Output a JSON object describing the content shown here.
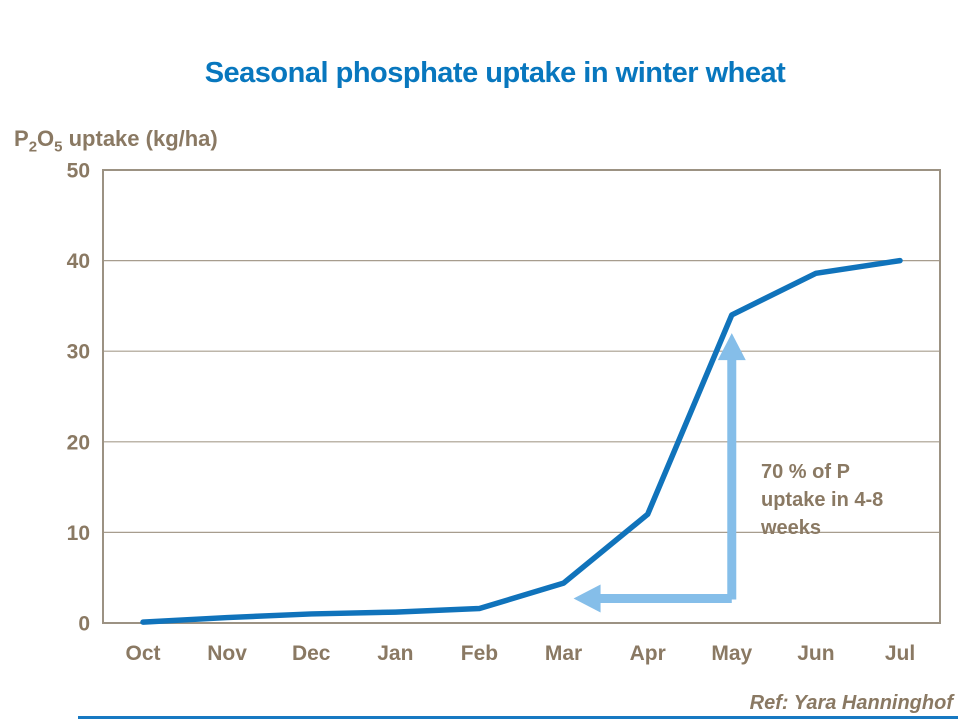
{
  "colors": {
    "title_blue": "#0877BE",
    "line_blue": "#1073BB",
    "arrow_blue": "#85BEE9",
    "text_brown": "#8A7963",
    "grid": "#A79D8E",
    "border": "#9C9283",
    "footer_bar": "#1779C2"
  },
  "chart_data": {
    "type": "line",
    "title": "Seasonal phosphate uptake in winter wheat",
    "ylabel": "P2O5 uptake (kg/ha)",
    "ylabel_parts": [
      {
        "text": "P",
        "sub": false
      },
      {
        "text": "2",
        "sub": true
      },
      {
        "text": "O",
        "sub": false
      },
      {
        "text": "5",
        "sub": true
      },
      {
        "text": " uptake (kg/ha)",
        "sub": false
      }
    ],
    "categories": [
      "Oct",
      "Nov",
      "Dec",
      "Jan",
      "Feb",
      "Mar",
      "Apr",
      "May",
      "Jun",
      "Jul"
    ],
    "series": [
      {
        "name": "P2O5 uptake",
        "values": [
          0.1,
          0.6,
          1.0,
          1.2,
          1.6,
          4.4,
          12,
          34,
          38.6,
          40
        ]
      }
    ],
    "ylim": [
      0,
      50
    ],
    "yticks": [
      0,
      10,
      20,
      30,
      40,
      50
    ],
    "grid": "horizontal",
    "legend": "none",
    "annotation": {
      "text": "70 % of P uptake in 4-8 weeks",
      "lines": [
        "70 % of P",
        "uptake in 4-8",
        "weeks"
      ],
      "vertical_arrow": {
        "category": "May",
        "from_value": 2.6,
        "to_value": 32
      },
      "horizontal_arrow": {
        "at_value": 2.7,
        "from_category": "May",
        "to_category": "Mar"
      }
    },
    "footer_ref": "Ref: Yara Hanninghof"
  }
}
